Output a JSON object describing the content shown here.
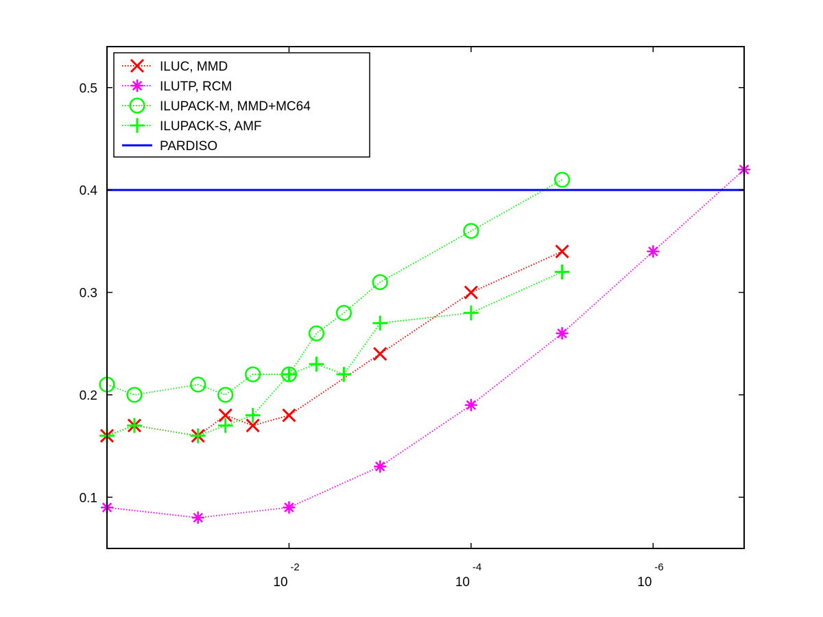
{
  "chart_data": {
    "type": "line",
    "title": "",
    "xlabel": "",
    "ylabel": "",
    "x_scale": "log",
    "x_direction": "decreasing",
    "xlim": [
      1,
      1e-07
    ],
    "ylim": [
      0.05,
      0.54
    ],
    "grid": false,
    "legend_position": "top-left",
    "x_ticks": [
      {
        "base": "10",
        "exp": "-2",
        "value": 0.01
      },
      {
        "base": "10",
        "exp": "-4",
        "value": 0.0001
      },
      {
        "base": "10",
        "exp": "-6",
        "value": 1e-06
      }
    ],
    "y_ticks": [
      {
        "label": "0.1",
        "value": 0.1
      },
      {
        "label": "0.2",
        "value": 0.2
      },
      {
        "label": "0.3",
        "value": 0.3
      },
      {
        "label": "0.4",
        "value": 0.4
      },
      {
        "label": "0.5",
        "value": 0.5
      }
    ],
    "series": [
      {
        "name": "ILUC, MMD",
        "color": "#ff0000",
        "marker": "x",
        "line_style": "dotted",
        "points": [
          {
            "x": 1,
            "y": 0.16
          },
          {
            "x": 0.5,
            "y": 0.17
          },
          {
            "x": 0.1,
            "y": 0.16
          },
          {
            "x": 0.05,
            "y": 0.18
          },
          {
            "x": 0.025,
            "y": 0.17
          },
          {
            "x": 0.01,
            "y": 0.18
          },
          {
            "x": 0.001,
            "y": 0.24
          },
          {
            "x": 0.0001,
            "y": 0.3
          },
          {
            "x": 1e-05,
            "y": 0.34
          }
        ]
      },
      {
        "name": "ILUTP, RCM",
        "color": "#ff00ff",
        "marker": "asterisk",
        "line_style": "dotted",
        "points": [
          {
            "x": 1,
            "y": 0.09
          },
          {
            "x": 0.1,
            "y": 0.08
          },
          {
            "x": 0.01,
            "y": 0.09
          },
          {
            "x": 0.001,
            "y": 0.13
          },
          {
            "x": 0.0001,
            "y": 0.19
          },
          {
            "x": 1e-05,
            "y": 0.26
          },
          {
            "x": 1e-06,
            "y": 0.34
          },
          {
            "x": 1e-07,
            "y": 0.42
          }
        ]
      },
      {
        "name": "ILUPACK-M, MMD+MC64",
        "color": "#00ff00",
        "marker": "circle",
        "line_style": "dotted",
        "points": [
          {
            "x": 1,
            "y": 0.21
          },
          {
            "x": 0.5,
            "y": 0.2
          },
          {
            "x": 0.1,
            "y": 0.21
          },
          {
            "x": 0.05,
            "y": 0.2
          },
          {
            "x": 0.025,
            "y": 0.22
          },
          {
            "x": 0.01,
            "y": 0.22
          },
          {
            "x": 0.005,
            "y": 0.26
          },
          {
            "x": 0.0025,
            "y": 0.28
          },
          {
            "x": 0.001,
            "y": 0.31
          },
          {
            "x": 0.0001,
            "y": 0.36
          },
          {
            "x": 1e-05,
            "y": 0.41
          }
        ]
      },
      {
        "name": "ILUPACK-S, AMF",
        "color": "#00ff00",
        "marker": "plus",
        "line_style": "dotted",
        "points": [
          {
            "x": 1,
            "y": 0.16
          },
          {
            "x": 0.5,
            "y": 0.17
          },
          {
            "x": 0.1,
            "y": 0.16
          },
          {
            "x": 0.05,
            "y": 0.17
          },
          {
            "x": 0.025,
            "y": 0.18
          },
          {
            "x": 0.01,
            "y": 0.22
          },
          {
            "x": 0.005,
            "y": 0.23
          },
          {
            "x": 0.0025,
            "y": 0.22
          },
          {
            "x": 0.001,
            "y": 0.27
          },
          {
            "x": 0.0001,
            "y": 0.28
          },
          {
            "x": 1e-05,
            "y": 0.32
          }
        ]
      },
      {
        "name": "PARDISO",
        "color": "#0000ff",
        "marker": "none",
        "line_style": "solid",
        "points": [
          {
            "x": 1,
            "y": 0.4
          },
          {
            "x": 1e-07,
            "y": 0.4
          }
        ]
      }
    ]
  }
}
